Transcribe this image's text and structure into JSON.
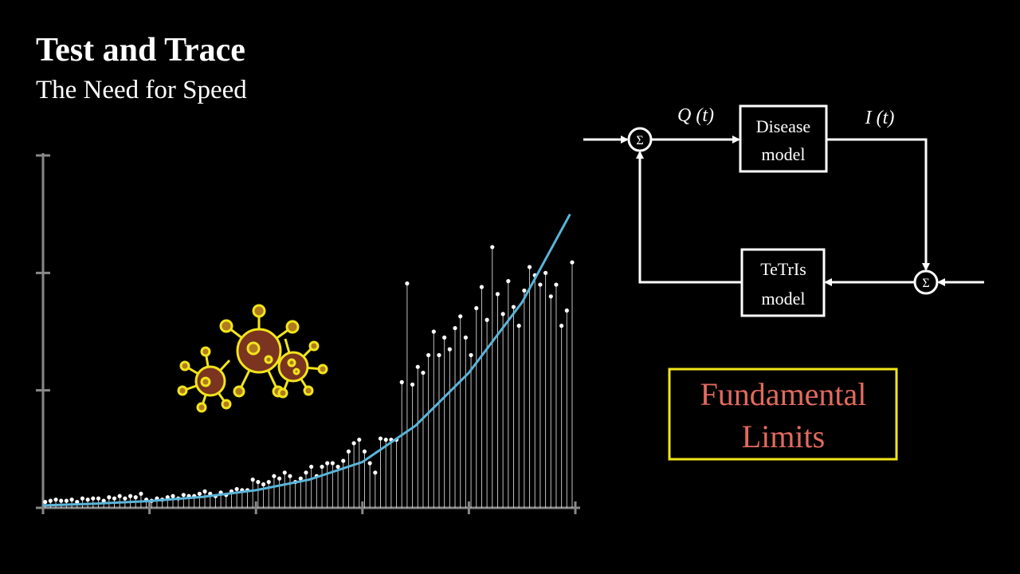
{
  "chart_data": {
    "type": "stem",
    "title": "Test and Trace",
    "subtitle": "The Need for Speed",
    "x": [
      0.02,
      0.07,
      0.12,
      0.17,
      0.22,
      0.27,
      0.32,
      0.37,
      0.42,
      0.47,
      0.52,
      0.57,
      0.62,
      0.67,
      0.72,
      0.77,
      0.82,
      0.87,
      0.92,
      0.97,
      1.02,
      1.07,
      1.12,
      1.17,
      1.22,
      1.27,
      1.32,
      1.37,
      1.42,
      1.47,
      1.52,
      1.57,
      1.62,
      1.67,
      1.72,
      1.77,
      1.82,
      1.87,
      1.92,
      1.97,
      2.02,
      2.07,
      2.12,
      2.17,
      2.22,
      2.27,
      2.32,
      2.37,
      2.42,
      2.47,
      2.52,
      2.57,
      2.62,
      2.67,
      2.72,
      2.77,
      2.82,
      2.87,
      2.92,
      2.97,
      3.02,
      3.07,
      3.12,
      3.17,
      3.22,
      3.27,
      3.32,
      3.37,
      3.42,
      3.47,
      3.52,
      3.57,
      3.62,
      3.67,
      3.72,
      3.77,
      3.82,
      3.87,
      3.92,
      3.97,
      4.02,
      4.07,
      4.12,
      4.17,
      4.22,
      4.27,
      4.32,
      4.37,
      4.42,
      4.47,
      4.52,
      4.57,
      4.62,
      4.67,
      4.72,
      4.77,
      4.82,
      4.87,
      4.92,
      4.97
    ],
    "values": [
      0.05,
      0.06,
      0.07,
      0.06,
      0.06,
      0.07,
      0.05,
      0.08,
      0.07,
      0.08,
      0.08,
      0.06,
      0.09,
      0.08,
      0.1,
      0.08,
      0.1,
      0.09,
      0.12,
      0.07,
      0.06,
      0.08,
      0.07,
      0.09,
      0.1,
      0.08,
      0.11,
      0.1,
      0.1,
      0.12,
      0.14,
      0.12,
      0.1,
      0.13,
      0.11,
      0.14,
      0.16,
      0.15,
      0.15,
      0.24,
      0.22,
      0.2,
      0.22,
      0.27,
      0.25,
      0.3,
      0.27,
      0.22,
      0.25,
      0.3,
      0.35,
      0.27,
      0.35,
      0.38,
      0.38,
      0.35,
      0.4,
      0.48,
      0.55,
      0.58,
      0.48,
      0.38,
      0.3,
      0.59,
      0.58,
      0.58,
      0.58,
      1.07,
      1.91,
      1.05,
      1.2,
      1.15,
      1.3,
      1.5,
      1.3,
      1.45,
      1.35,
      1.53,
      1.63,
      1.45,
      1.3,
      1.7,
      1.88,
      1.6,
      2.22,
      1.82,
      1.65,
      1.93,
      1.71,
      1.55,
      1.85,
      2.05,
      1.98,
      1.9,
      2.0,
      1.8,
      1.9,
      1.55,
      1.68,
      2.09
    ],
    "color": "#ffffff",
    "curve": {
      "x": [
        0,
        0.5,
        1,
        1.5,
        2,
        2.5,
        3,
        3.5,
        4,
        4.5,
        4.95
      ],
      "values": [
        0.02,
        0.036,
        0.058,
        0.093,
        0.15,
        0.24,
        0.39,
        0.7,
        1.15,
        1.75,
        2.5
      ],
      "color": "#5ab4d8"
    },
    "xlim": [
      0,
      5
    ],
    "ylim": [
      0,
      3
    ],
    "xticks": [
      0,
      1,
      2,
      3,
      4,
      5
    ],
    "yticks": [
      0,
      1,
      2,
      3
    ]
  },
  "diagram": {
    "sum_symbol": "Σ",
    "input_label": "Q (t)",
    "output_label": "I (t)",
    "blocks": [
      {
        "lines": [
          "Disease",
          "model"
        ]
      },
      {
        "lines": [
          "TeTrIs",
          "model"
        ]
      }
    ],
    "callout": {
      "lines": [
        "Fundamental",
        "Limits"
      ]
    }
  }
}
